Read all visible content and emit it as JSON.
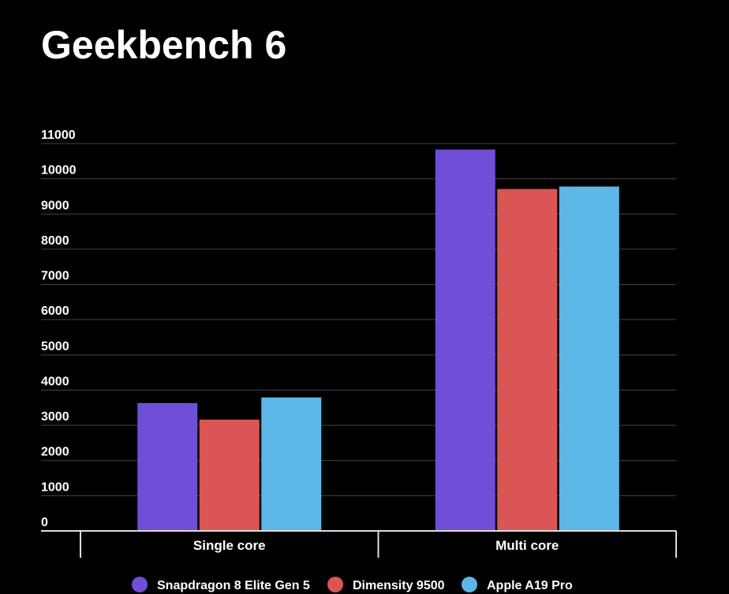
{
  "chart_data": {
    "type": "bar",
    "title": "Geekbench 6",
    "categories": [
      "Single core",
      "Multi core"
    ],
    "series": [
      {
        "name": "Snapdragon 8 Elite Gen 5",
        "color": "#6f4fd8",
        "values": [
          3630,
          10830
        ]
      },
      {
        "name": "Dimensity 9500",
        "color": "#db5555",
        "values": [
          3160,
          9710
        ]
      },
      {
        "name": "Apple A19 Pro",
        "color": "#5db7e6",
        "values": [
          3790,
          9780
        ]
      }
    ],
    "ylim": [
      0,
      11000
    ],
    "yticks": [
      0,
      1000,
      2000,
      3000,
      4000,
      5000,
      6000,
      7000,
      8000,
      9000,
      10000,
      11000
    ],
    "grid": true
  }
}
